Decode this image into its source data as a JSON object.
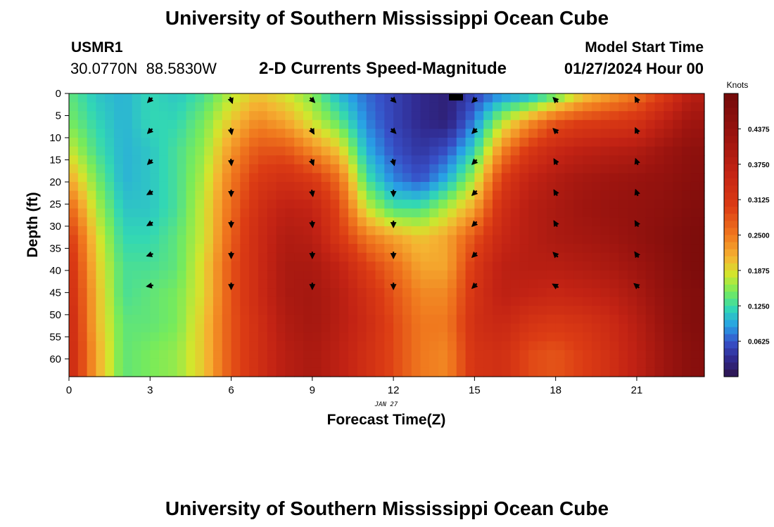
{
  "page": {
    "title": "University of Southern Mississippi Ocean Cube",
    "station_id": "USMR1",
    "coordinates": "30.0770N  88.5830W",
    "subtitle": "2-D Currents Speed-Magnitude",
    "model_start_label": "Model Start Time",
    "model_start_value": "01/27/2024 Hour 00",
    "footer_title": "University of Southern Mississippi Ocean Cube"
  },
  "chart_data": {
    "type": "heatmap",
    "title": "2-D Currents Speed-Magnitude",
    "xlabel": "Forecast Time(Z)",
    "ylabel": "Depth (ft)",
    "date_label": "JAN 27",
    "x_ticks": [
      "0",
      "3",
      "6",
      "9",
      "12",
      "15",
      "18",
      "21"
    ],
    "y_ticks": [
      "0",
      "5",
      "10",
      "15",
      "20",
      "25",
      "30",
      "35",
      "40",
      "45",
      "50",
      "55",
      "60"
    ],
    "xlim": [
      0,
      23.5
    ],
    "ylim": [
      0,
      64
    ],
    "colorbar": {
      "label": "Knots",
      "ticks": [
        "0.4375",
        "0.3750",
        "0.3125",
        "0.2500",
        "0.1875",
        "0.1250",
        "0.0625"
      ],
      "range": [
        0,
        0.5
      ]
    },
    "hours": [
      0,
      1,
      2,
      3,
      4,
      5,
      6,
      7,
      8,
      9,
      10,
      11,
      12,
      13,
      14,
      15,
      16,
      17,
      18,
      19,
      20,
      21,
      22,
      23
    ],
    "depth_rows_ft": [
      0,
      6.5,
      13,
      19.5,
      26,
      32.5,
      39,
      45.5,
      52,
      58.5
    ],
    "speed_knots": [
      [
        0.14,
        0.11,
        0.1,
        0.12,
        0.11,
        0.13,
        0.17,
        0.2,
        0.18,
        0.15,
        0.1,
        0.07,
        0.05,
        0.03,
        0.02,
        0.05,
        0.08,
        0.09,
        0.13,
        0.19,
        0.22,
        0.25,
        0.3,
        0.38
      ],
      [
        0.15,
        0.12,
        0.1,
        0.12,
        0.12,
        0.15,
        0.2,
        0.24,
        0.22,
        0.18,
        0.14,
        0.08,
        0.05,
        0.03,
        0.02,
        0.08,
        0.17,
        0.23,
        0.28,
        0.3,
        0.31,
        0.32,
        0.37,
        0.42
      ],
      [
        0.18,
        0.13,
        0.1,
        0.11,
        0.13,
        0.16,
        0.23,
        0.28,
        0.28,
        0.24,
        0.2,
        0.1,
        0.06,
        0.04,
        0.06,
        0.12,
        0.24,
        0.31,
        0.35,
        0.37,
        0.38,
        0.39,
        0.42,
        0.45
      ],
      [
        0.22,
        0.15,
        0.1,
        0.11,
        0.13,
        0.17,
        0.25,
        0.31,
        0.33,
        0.31,
        0.26,
        0.13,
        0.08,
        0.06,
        0.1,
        0.17,
        0.3,
        0.36,
        0.39,
        0.41,
        0.42,
        0.43,
        0.44,
        0.46
      ],
      [
        0.27,
        0.17,
        0.11,
        0.11,
        0.13,
        0.18,
        0.26,
        0.33,
        0.37,
        0.36,
        0.29,
        0.18,
        0.13,
        0.13,
        0.17,
        0.22,
        0.33,
        0.38,
        0.4,
        0.42,
        0.43,
        0.44,
        0.45,
        0.47
      ],
      [
        0.31,
        0.19,
        0.12,
        0.12,
        0.14,
        0.18,
        0.27,
        0.34,
        0.39,
        0.38,
        0.31,
        0.25,
        0.22,
        0.2,
        0.22,
        0.28,
        0.35,
        0.38,
        0.4,
        0.41,
        0.42,
        0.44,
        0.46,
        0.48
      ],
      [
        0.33,
        0.2,
        0.13,
        0.13,
        0.14,
        0.19,
        0.28,
        0.34,
        0.4,
        0.4,
        0.36,
        0.3,
        0.26,
        0.22,
        0.22,
        0.31,
        0.37,
        0.38,
        0.38,
        0.39,
        0.4,
        0.42,
        0.45,
        0.48
      ],
      [
        0.34,
        0.21,
        0.13,
        0.14,
        0.15,
        0.19,
        0.28,
        0.34,
        0.4,
        0.41,
        0.38,
        0.33,
        0.28,
        0.24,
        0.24,
        0.32,
        0.37,
        0.36,
        0.35,
        0.36,
        0.37,
        0.4,
        0.44,
        0.47
      ],
      [
        0.35,
        0.21,
        0.14,
        0.14,
        0.15,
        0.2,
        0.28,
        0.33,
        0.39,
        0.41,
        0.38,
        0.34,
        0.29,
        0.25,
        0.25,
        0.33,
        0.35,
        0.32,
        0.31,
        0.32,
        0.34,
        0.38,
        0.43,
        0.47
      ],
      [
        0.35,
        0.22,
        0.14,
        0.15,
        0.16,
        0.2,
        0.28,
        0.33,
        0.38,
        0.4,
        0.37,
        0.33,
        0.29,
        0.25,
        0.24,
        0.32,
        0.33,
        0.29,
        0.28,
        0.3,
        0.33,
        0.37,
        0.42,
        0.46
      ]
    ],
    "vector_hours": [
      3,
      6,
      9,
      12,
      15,
      18,
      21
    ],
    "vector_depths_ft": [
      1,
      8,
      15,
      22,
      29,
      36,
      43
    ],
    "vector_direction_deg": [
      [
        225,
        225,
        225,
        240,
        240,
        250,
        260
      ],
      [
        160,
        170,
        175,
        180,
        180,
        180,
        180
      ],
      [
        135,
        150,
        160,
        170,
        175,
        180,
        180
      ],
      [
        135,
        135,
        165,
        180,
        180,
        180,
        180
      ],
      [
        225,
        225,
        225,
        225,
        225,
        225,
        225
      ],
      [
        315,
        315,
        330,
        330,
        330,
        315,
        300
      ],
      [
        330,
        335,
        340,
        340,
        330,
        325,
        310
      ]
    ]
  }
}
